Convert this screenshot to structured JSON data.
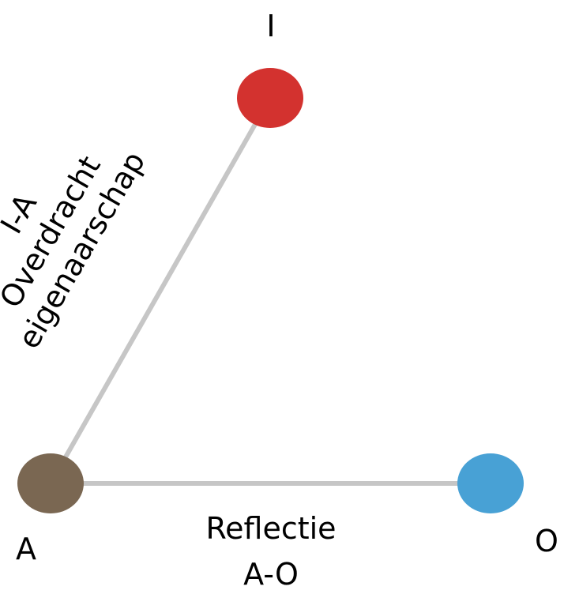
{
  "nodes": {
    "i": {
      "label": "I",
      "color": "#d3322f"
    },
    "a": {
      "label": "A",
      "color": "#7a6752"
    },
    "o": {
      "label": "O",
      "color": "#48a1d5"
    }
  },
  "edges": {
    "i_a": {
      "color": "#c6c6c6",
      "label_lines": [
        "I-A",
        "Overdracht",
        "eigenaarschap"
      ]
    },
    "a_o": {
      "color": "#c6c6c6",
      "label_lines": [
        "Reflectie",
        "A-O"
      ]
    }
  }
}
